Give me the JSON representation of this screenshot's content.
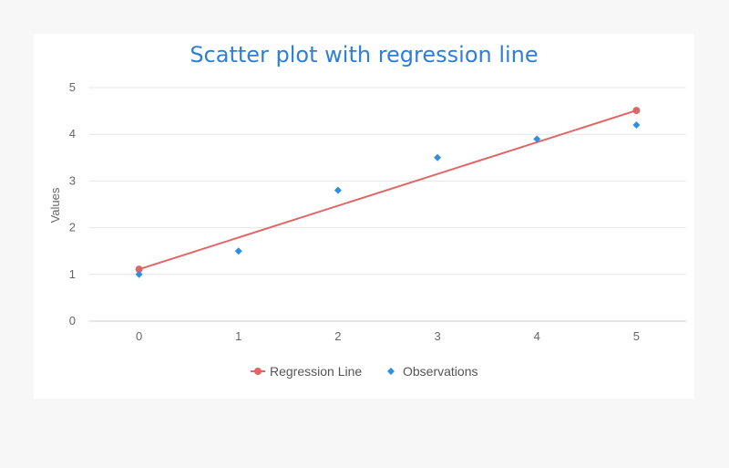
{
  "chart_data": {
    "type": "scatter",
    "title": "Scatter plot with regression line",
    "xlabel": "",
    "ylabel": "Values",
    "xlim": [
      -0.5,
      5.5
    ],
    "ylim": [
      0,
      5
    ],
    "x_ticks": [
      "0",
      "1",
      "2",
      "3",
      "4",
      "5"
    ],
    "y_ticks": [
      "0",
      "1",
      "2",
      "3",
      "4",
      "5"
    ],
    "grid": "horizontal",
    "legend": "bottom-center",
    "series": [
      {
        "name": "Regression Line",
        "kind": "line",
        "color": "#e06666",
        "marker": "circle",
        "points": [
          [
            0,
            1.11
          ],
          [
            5,
            4.51
          ]
        ]
      },
      {
        "name": "Observations",
        "kind": "scatter",
        "color": "#2f8fe3",
        "marker": "diamond",
        "points": [
          [
            0,
            1.0
          ],
          [
            1,
            1.5
          ],
          [
            2,
            2.8
          ],
          [
            3,
            3.5
          ],
          [
            4,
            3.9
          ],
          [
            5,
            4.2
          ]
        ]
      }
    ]
  }
}
